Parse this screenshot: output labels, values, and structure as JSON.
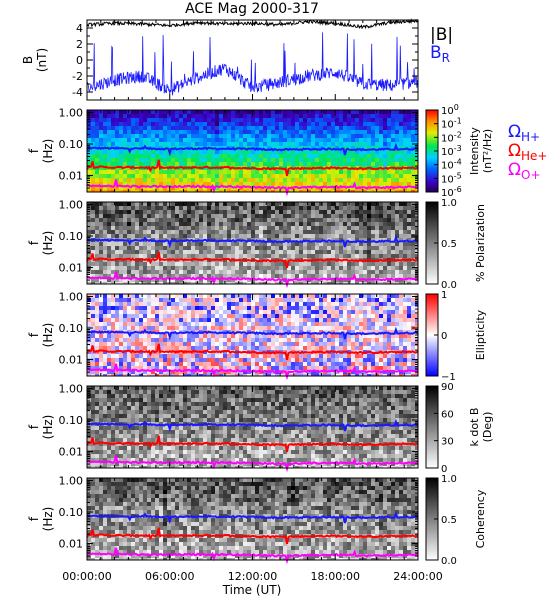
{
  "title": "ACE Mag 2000-317",
  "xaxis": {
    "label": "Time (UT)",
    "ticks": [
      "00:00:00",
      "06:00:00",
      "12:00:00",
      "18:00:00",
      "24:00:00"
    ],
    "range_hours": [
      0,
      24
    ]
  },
  "freq_ticks": [
    "1.00",
    "0.10",
    "0.01"
  ],
  "panels": [
    {
      "id": "field",
      "ylabel": "B",
      "yunit": "(nT)",
      "yticks": [
        "4",
        "2",
        "0",
        "-2",
        "-4"
      ],
      "legend": [
        {
          "text": "|B|",
          "color": "#000000"
        },
        {
          "text": "B",
          "sub": "R",
          "color": "#1a1aff"
        }
      ]
    },
    {
      "id": "intensity",
      "ylabel": "f",
      "yunit": "(Hz)",
      "colorbar": {
        "type": "rainbow",
        "ticks": [
          {
            "base": "10",
            "exp": "0"
          },
          {
            "base": "10",
            "exp": "-1"
          },
          {
            "base": "10",
            "exp": "-2"
          },
          {
            "base": "10",
            "exp": "-3"
          },
          {
            "base": "10",
            "exp": "-4"
          },
          {
            "base": "10",
            "exp": "-5"
          },
          {
            "base": "10",
            "exp": "-6"
          }
        ],
        "label_line1": "Intensity",
        "label_line2": "(nT²/Hz)"
      },
      "legend": [
        {
          "text": "Ω",
          "sub": "H+",
          "color": "#1a1aff"
        },
        {
          "text": "Ω",
          "sub": "He+",
          "color": "#ff0000"
        },
        {
          "text": "Ω",
          "sub": "O+",
          "color": "#ff00ff"
        }
      ]
    },
    {
      "id": "polarization",
      "ylabel": "f",
      "yunit": "(Hz)",
      "colorbar": {
        "type": "gray",
        "ticks": [
          "1.0",
          "0.5",
          "0.0"
        ],
        "label_line1": "% Polarization",
        "label_line2": ""
      }
    },
    {
      "id": "ellipticity",
      "ylabel": "f",
      "yunit": "(Hz)",
      "colorbar": {
        "type": "bwr",
        "ticks": [
          "1",
          "0",
          "−1"
        ],
        "label_line1": "Ellipticity",
        "label_line2": ""
      }
    },
    {
      "id": "kdotb",
      "ylabel": "f",
      "yunit": "(Hz)",
      "colorbar": {
        "type": "gray",
        "ticks": [
          "90",
          "60",
          "30",
          "0"
        ],
        "label_line1": "k dot B",
        "label_line2": "(Deg)"
      }
    },
    {
      "id": "coherency",
      "ylabel": "f",
      "yunit": "(Hz)",
      "colorbar": {
        "type": "gray",
        "ticks": [
          "1.0",
          "0.5",
          "0.0"
        ],
        "label_line1": "Coherency",
        "label_line2": ""
      }
    }
  ],
  "colors": {
    "h_plus": "#1a1aff",
    "he_plus": "#ff0000",
    "o_plus": "#ff00ff",
    "mag": "#000000",
    "br": "#1a1aff"
  },
  "chart_data": {
    "type": "line",
    "title": "ACE Mag 2000-317",
    "xlabel": "Time (UT)",
    "x_hours": [
      0,
      2,
      4,
      6,
      8,
      10,
      12,
      14,
      16,
      18,
      20,
      22,
      24
    ],
    "field_panel": {
      "ylabel": "B (nT)",
      "ylim": [
        -5,
        5
      ],
      "series": [
        {
          "name": "|B|",
          "values": [
            4.4,
            4.6,
            4.5,
            4.3,
            4.7,
            4.5,
            4.6,
            4.4,
            4.8,
            4.6,
            4.1,
            4.7,
            4.9
          ]
        },
        {
          "name": "B_R",
          "values": [
            -3.5,
            -2.5,
            -2.0,
            -3.8,
            -2.2,
            -1.0,
            -3.5,
            -2.8,
            -2.0,
            -1.5,
            -3.0,
            -3.2,
            -2.7
          ]
        }
      ]
    },
    "gyrofrequency_lines": {
      "ylabel": "f (Hz)",
      "ylim": [
        0.003,
        1.2
      ],
      "scale": "log",
      "series": [
        {
          "name": "ΩH+",
          "values": [
            0.075,
            0.073,
            0.072,
            0.07,
            0.072,
            0.071,
            0.069,
            0.066,
            0.068,
            0.07,
            0.066,
            0.068,
            0.07
          ]
        },
        {
          "name": "ΩHe+",
          "values": [
            0.019,
            0.018,
            0.018,
            0.0175,
            0.018,
            0.018,
            0.017,
            0.0165,
            0.017,
            0.0175,
            0.0165,
            0.017,
            0.0175
          ]
        },
        {
          "name": "ΩO+",
          "values": [
            0.0047,
            0.0046,
            0.0045,
            0.0044,
            0.0045,
            0.0045,
            0.0043,
            0.0041,
            0.0042,
            0.0044,
            0.0041,
            0.0042,
            0.0044
          ]
        }
      ]
    }
  }
}
